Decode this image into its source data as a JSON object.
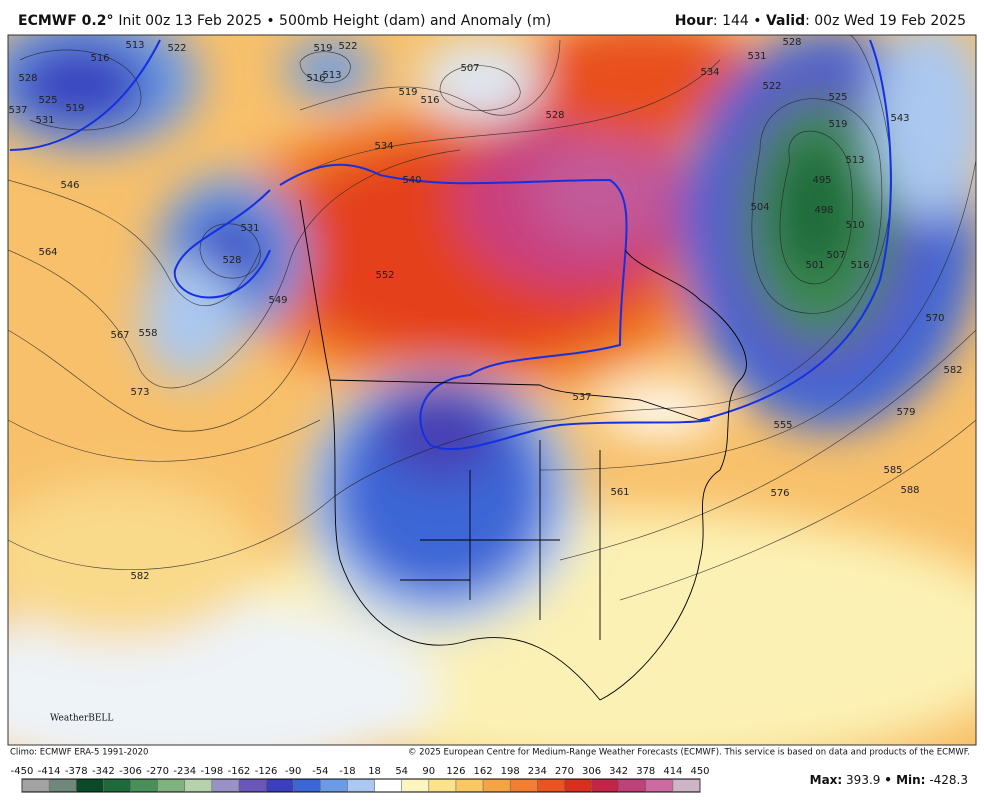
{
  "header": {
    "model": "ECMWF 0.2°",
    "subtitle": "Init 00z 13 Feb 2025 • 500mb Height (dam) and Anomaly (m)",
    "hour_label": "Hour",
    "hour": ": 144 •",
    "valid_label": "Valid",
    "valid": ": 00z Wed 19 Feb 2025"
  },
  "contour_labels": [
    516,
    519,
    525,
    528,
    531,
    537,
    522,
    513,
    519,
    522,
    513,
    516,
    519,
    516,
    507,
    528,
    534,
    540,
    531,
    528,
    546,
    564,
    567,
    558,
    573,
    549,
    552,
    537,
    555,
    561,
    576,
    579,
    585,
    588,
    582,
    570,
    531,
    534,
    528,
    522,
    525,
    519,
    513,
    504,
    495,
    498,
    501,
    507,
    510,
    516,
    543,
    582
  ],
  "logo": "WeatherBELL",
  "footer": {
    "climo": "Climo: ECMWF ERA-5 1991-2020",
    "copyright": "© 2025 European Centre for Medium-Range Weather Forecasts (ECMWF). This service is based on data and products of the ECMWF.",
    "max_label": "Max:",
    "max": 393.9,
    "min_label": "• Min:",
    "min": -428.3
  },
  "colorbar": {
    "ticks": [
      -450,
      -414,
      -378,
      -342,
      -306,
      -270,
      -234,
      -198,
      -162,
      -126,
      -90,
      -54,
      -18,
      18,
      54,
      90,
      126,
      162,
      198,
      234,
      270,
      306,
      342,
      378,
      414,
      450
    ],
    "colors": [
      "#a3a3a3",
      "#6f887a",
      "#0b4a28",
      "#1f6a3b",
      "#4a8f5a",
      "#7fb27f",
      "#b5d2ad",
      "#9a92c4",
      "#6a56b8",
      "#3b3fbe",
      "#3c66d6",
      "#6c9be6",
      "#aac8f0",
      "#ffffff",
      "#fdf5c0",
      "#fbe38c",
      "#f9c860",
      "#f6a443",
      "#f27e30",
      "#ea5420",
      "#d8301c",
      "#c22448",
      "#c0407a",
      "#cd6aa2",
      "#cdb4c6"
    ]
  }
}
